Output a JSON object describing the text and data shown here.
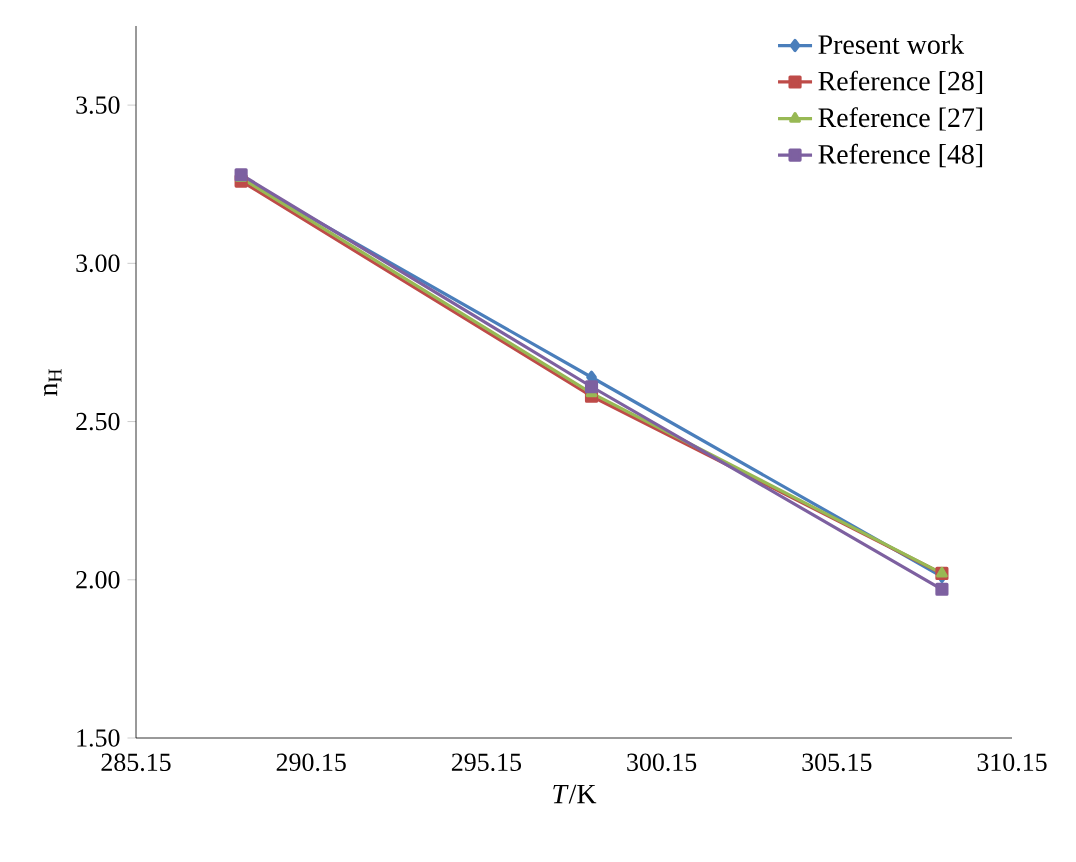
{
  "chart_data": {
    "type": "line",
    "xlabel": "*T*/K",
    "ylabel": "n$_{H}$",
    "x": [
      288.15,
      298.15,
      308.15
    ],
    "series": [
      {
        "name": "Present work",
        "color": "#4a7ebb",
        "marker": "diamond",
        "values": [
          3.27,
          2.64,
          2.01
        ]
      },
      {
        "name": "Reference [28]",
        "color": "#be4b48",
        "marker": "square",
        "values": [
          3.26,
          2.58,
          2.02
        ]
      },
      {
        "name": "Reference [27]",
        "color": "#98b954",
        "marker": "triangle",
        "values": [
          3.27,
          2.59,
          2.02
        ]
      },
      {
        "name": "Reference [48]",
        "color": "#7d60a0",
        "marker": "square",
        "values": [
          3.28,
          2.61,
          1.97
        ]
      }
    ],
    "xlim": [
      285.15,
      310.15
    ],
    "ylim": [
      1.5,
      3.75
    ],
    "xticks": [
      {
        "value": 285.15,
        "label": "285.15"
      },
      {
        "value": 290.15,
        "label": "290.15"
      },
      {
        "value": 295.15,
        "label": "295.15"
      },
      {
        "value": 300.15,
        "label": "300.15"
      },
      {
        "value": 305.15,
        "label": "305.15"
      },
      {
        "value": 310.15,
        "label": "310.15"
      }
    ],
    "yticks": [
      {
        "value": 1.5,
        "label": "1.50"
      },
      {
        "value": 2.0,
        "label": "2.00"
      },
      {
        "value": 2.5,
        "label": "2.50"
      },
      {
        "value": 3.0,
        "label": "3.00"
      },
      {
        "value": 3.5,
        "label": "3.50"
      }
    ],
    "legend": "top right",
    "grid": false
  }
}
